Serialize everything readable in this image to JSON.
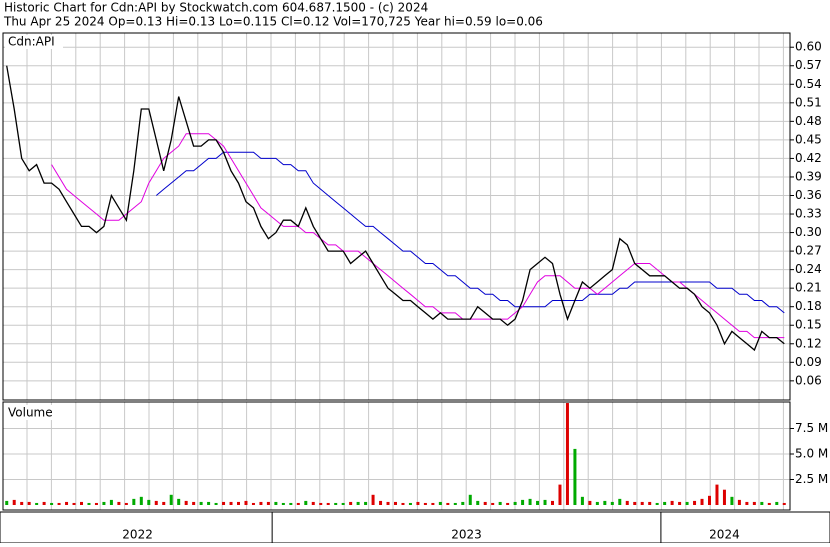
{
  "chart_data": {
    "type": "line",
    "title": "Historic Chart for Cdn:API by Stockwatch.com 604.687.1500 - (c) 2024",
    "subtitle": "Thu Apr 25 2024  Op=0.13  Hi=0.13  Lo=0.115  Cl=0.12  Vol=170,725  Year hi=0.59  lo=0.06",
    "price_label": "Cdn:API",
    "volume_label": "Volume",
    "categories": [
      "2022",
      null,
      null,
      null,
      null,
      null,
      null,
      null,
      null,
      null,
      null,
      null,
      null,
      null,
      null,
      null,
      null,
      null,
      null,
      null,
      null,
      null,
      null,
      null,
      null,
      null,
      null,
      null,
      null,
      null,
      null,
      null,
      null,
      null,
      null,
      null,
      "2023",
      null,
      null,
      null,
      null,
      null,
      null,
      null,
      null,
      null,
      null,
      null,
      null,
      null,
      null,
      null,
      null,
      null,
      null,
      null,
      null,
      null,
      null,
      null,
      null,
      null,
      null,
      null,
      null,
      null,
      null,
      null,
      null,
      null,
      null,
      null,
      null,
      null,
      null,
      null,
      null,
      null,
      null,
      null,
      null,
      null,
      null,
      null,
      null,
      null,
      null,
      null,
      "2024",
      null,
      null,
      null,
      null,
      null,
      null,
      null,
      null,
      null,
      null,
      null,
      null,
      null,
      null,
      null,
      null
    ],
    "series": [
      {
        "color": "#000000",
        "values": [
          0.57,
          0.5,
          0.42,
          0.4,
          0.41,
          0.38,
          0.38,
          0.37,
          0.35,
          0.33,
          0.31,
          0.31,
          0.3,
          0.31,
          0.36,
          0.34,
          0.32,
          0.4,
          0.5,
          0.5,
          0.45,
          0.4,
          0.45,
          0.52,
          0.48,
          0.44,
          0.44,
          0.45,
          0.45,
          0.43,
          0.4,
          0.38,
          0.35,
          0.34,
          0.31,
          0.29,
          0.3,
          0.32,
          0.32,
          0.31,
          0.34,
          0.31,
          0.29,
          0.27,
          0.27,
          0.27,
          0.25,
          0.26,
          0.27,
          0.25,
          0.23,
          0.21,
          0.2,
          0.19,
          0.19,
          0.18,
          0.17,
          0.16,
          0.17,
          0.16,
          0.16,
          0.16,
          0.16,
          0.18,
          0.17,
          0.16,
          0.16,
          0.15,
          0.16,
          0.19,
          0.24,
          0.25,
          0.26,
          0.25,
          0.2,
          0.16,
          0.19,
          0.22,
          0.21,
          0.22,
          0.23,
          0.24,
          0.29,
          0.28,
          0.25,
          0.24,
          0.23,
          0.23,
          0.23,
          0.22,
          0.21,
          0.21,
          0.2,
          0.18,
          0.17,
          0.15,
          0.12,
          0.14,
          0.13,
          0.12,
          0.11,
          0.14,
          0.13,
          0.13,
          0.12
        ]
      },
      {
        "color": "#e000e0",
        "values": [
          null,
          null,
          null,
          null,
          null,
          null,
          0.41,
          0.39,
          0.37,
          0.36,
          0.35,
          0.34,
          0.33,
          0.32,
          0.32,
          0.32,
          0.33,
          0.34,
          0.35,
          0.38,
          0.4,
          0.42,
          0.43,
          0.44,
          0.46,
          0.46,
          0.46,
          0.46,
          0.45,
          0.44,
          0.42,
          0.4,
          0.38,
          0.36,
          0.34,
          0.33,
          0.32,
          0.31,
          0.31,
          0.31,
          0.3,
          0.3,
          0.29,
          0.28,
          0.28,
          0.27,
          0.27,
          0.27,
          0.26,
          0.25,
          0.24,
          0.23,
          0.22,
          0.21,
          0.2,
          0.19,
          0.18,
          0.18,
          0.17,
          0.17,
          0.17,
          0.16,
          0.16,
          0.16,
          0.16,
          0.16,
          0.16,
          0.16,
          0.17,
          0.18,
          0.2,
          0.22,
          0.23,
          0.23,
          0.23,
          0.22,
          0.21,
          0.21,
          0.21,
          0.2,
          0.21,
          0.22,
          0.23,
          0.24,
          0.25,
          0.25,
          0.25,
          0.24,
          0.23,
          0.22,
          0.22,
          0.21,
          0.2,
          0.19,
          0.18,
          0.17,
          0.16,
          0.15,
          0.14,
          0.14,
          0.13,
          0.13,
          0.13,
          0.13,
          0.13
        ]
      },
      {
        "color": "#0000cc",
        "values": [
          null,
          null,
          null,
          null,
          null,
          null,
          null,
          null,
          null,
          null,
          null,
          null,
          null,
          null,
          null,
          null,
          null,
          null,
          null,
          null,
          0.36,
          0.37,
          0.38,
          0.39,
          0.4,
          0.4,
          0.41,
          0.42,
          0.42,
          0.43,
          0.43,
          0.43,
          0.43,
          0.43,
          0.42,
          0.42,
          0.42,
          0.41,
          0.41,
          0.4,
          0.4,
          0.38,
          0.37,
          0.36,
          0.35,
          0.34,
          0.33,
          0.32,
          0.31,
          0.31,
          0.3,
          0.29,
          0.28,
          0.27,
          0.27,
          0.26,
          0.25,
          0.25,
          0.24,
          0.23,
          0.23,
          0.22,
          0.21,
          0.21,
          0.2,
          0.2,
          0.19,
          0.19,
          0.18,
          0.18,
          0.18,
          0.18,
          0.18,
          0.19,
          0.19,
          0.19,
          0.19,
          0.19,
          0.2,
          0.2,
          0.2,
          0.2,
          0.21,
          0.21,
          0.22,
          0.22,
          0.22,
          0.22,
          0.22,
          0.22,
          0.22,
          0.22,
          0.22,
          0.22,
          0.22,
          0.21,
          0.21,
          0.21,
          0.2,
          0.2,
          0.19,
          0.19,
          0.18,
          0.18,
          0.17
        ]
      }
    ],
    "volume": [
      0.4,
      0.5,
      0.3,
      0.3,
      0.2,
      0.3,
      0.2,
      0.2,
      0.3,
      0.2,
      0.3,
      0.2,
      0.2,
      0.3,
      0.5,
      0.3,
      0.2,
      0.6,
      0.8,
      0.5,
      0.4,
      0.3,
      1.0,
      0.6,
      0.4,
      0.3,
      0.3,
      0.3,
      0.2,
      0.3,
      0.3,
      0.3,
      0.4,
      0.2,
      0.3,
      0.3,
      0.3,
      0.2,
      0.2,
      0.2,
      0.4,
      0.3,
      0.2,
      0.2,
      0.2,
      0.2,
      0.3,
      0.3,
      0.3,
      1.0,
      0.4,
      0.3,
      0.3,
      0.2,
      0.2,
      0.3,
      0.2,
      0.2,
      0.3,
      0.2,
      0.2,
      0.3,
      1.0,
      0.4,
      0.3,
      0.2,
      0.3,
      0.2,
      0.3,
      0.5,
      0.6,
      0.4,
      0.5,
      0.4,
      2.0,
      10.0,
      5.5,
      0.8,
      0.4,
      0.3,
      0.4,
      0.3,
      0.6,
      0.4,
      0.3,
      0.3,
      0.3,
      0.2,
      0.3,
      0.4,
      0.3,
      0.3,
      0.4,
      0.6,
      0.9,
      2.0,
      1.5,
      0.8,
      0.5,
      0.3,
      0.3,
      0.3,
      0.2,
      0.3,
      0.2
    ],
    "up_color": "#00aa00",
    "down_color": "#dd0000",
    "ylim": [
      0.029,
      0.623
    ],
    "yticks": [
      0.06,
      0.09,
      0.12,
      0.15,
      0.18,
      0.21,
      0.24,
      0.27,
      {
        "value": 0.3,
        "label": "0.30"
      },
      0.33,
      0.36,
      0.39,
      0.42,
      0.45,
      0.48,
      0.51,
      0.54,
      0.57,
      {
        "value": 0.6,
        "label": "0.60"
      }
    ],
    "vlim": [
      0,
      10.1
    ],
    "vticks": [
      {
        "value": 2.5,
        "label": "2.5 M"
      },
      {
        "value": 5.0,
        "label": "5.0 M"
      },
      {
        "value": 7.5,
        "label": "7.5 M"
      }
    ],
    "grid": true
  }
}
